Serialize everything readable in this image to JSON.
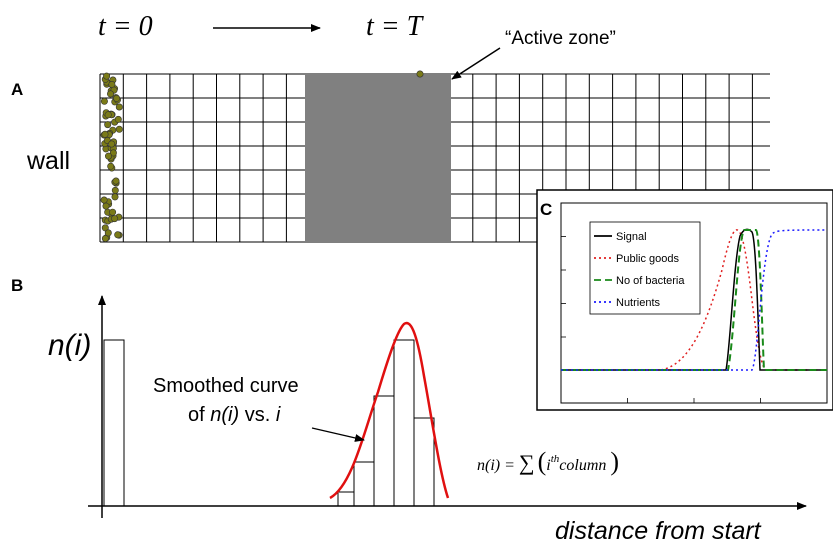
{
  "panel_a": {
    "letter": "A",
    "time_start": "t = 0",
    "time_end": "t = T",
    "active_zone_label": "“Active zone”",
    "wall_label": "wall"
  },
  "panel_b": {
    "letter": "B",
    "y_label": "n(i)",
    "curve_label_line1": "Smoothed curve",
    "curve_label_line2_pre": "of ",
    "curve_label_line2_italic": "n(i)",
    "curve_label_line2_mid": " vs. ",
    "curve_label_line2_i": "i",
    "formula_lhs": "n(i) = ",
    "formula_sum": "∑",
    "formula_open": "(",
    "formula_i": "i",
    "formula_sup": "th",
    "formula_word": "column",
    "formula_close": ")",
    "x_label": "distance from start"
  },
  "panel_c": {
    "letter": "C",
    "legend": [
      {
        "label": "Signal",
        "color": "#000000",
        "dash": "solid"
      },
      {
        "label": "Public goods",
        "color": "#e02020",
        "dash": "dotted"
      },
      {
        "label": "No of bacteria",
        "color": "#1a8a1a",
        "dash": "dashed"
      },
      {
        "label": "Nutrients",
        "color": "#1a1aff",
        "dash": "dotted"
      }
    ]
  },
  "colors": {
    "active_zone": "#808080",
    "bacteria": "#7a7a18",
    "smooth_curve": "#e01010"
  }
}
